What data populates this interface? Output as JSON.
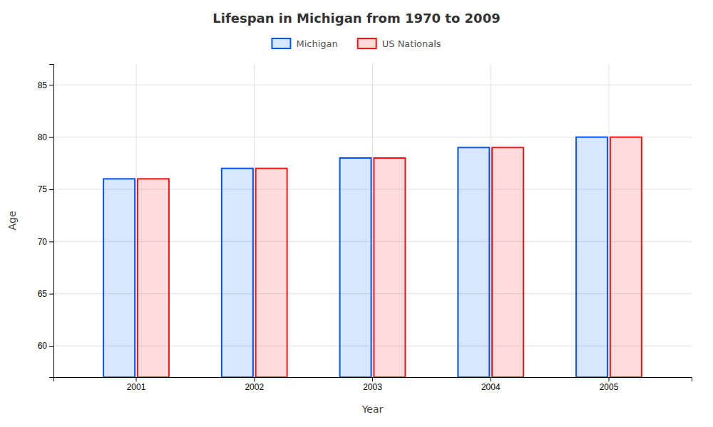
{
  "chart_data": {
    "type": "bar",
    "title": "Lifespan in Michigan from 1970 to 2009",
    "xlabel": "Year",
    "ylabel": "Age",
    "categories": [
      "2001",
      "2002",
      "2003",
      "2004",
      "2005"
    ],
    "series": [
      {
        "name": "Michigan",
        "color": "#0055ff",
        "values": [
          76,
          77,
          78,
          79,
          80
        ]
      },
      {
        "name": "US Nationals",
        "color": "#ff1111",
        "values": [
          76,
          77,
          78,
          79,
          80
        ]
      }
    ],
    "ylim": [
      57,
      87
    ],
    "yticks": [
      60,
      65,
      70,
      75,
      80,
      85
    ],
    "grid": true,
    "legend": "top"
  }
}
